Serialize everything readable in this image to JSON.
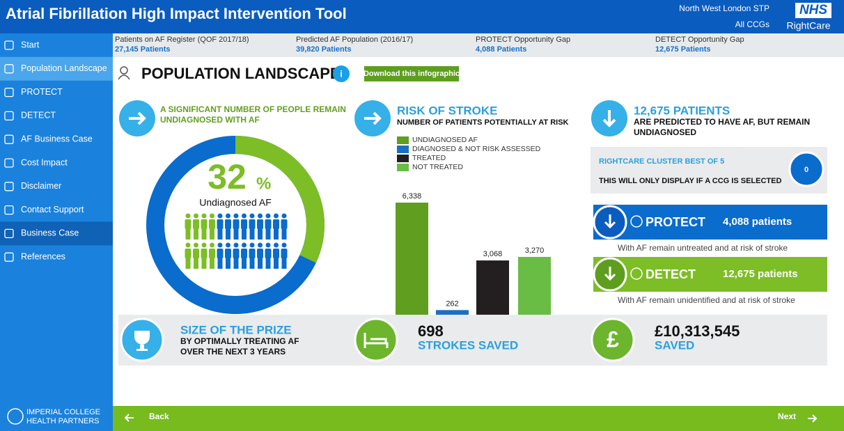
{
  "header": {
    "title": "Atrial Fibrillation High Impact Intervention Tool",
    "region": "North West London STP",
    "ccg": "All CCGs",
    "logo": "NHS",
    "brand": "RightCare"
  },
  "sidebar": {
    "items": [
      "Start",
      "Population Landscape",
      "PROTECT",
      "DETECT",
      "AF Business Case",
      "Cost Impact",
      "Disclaimer",
      "Contact Support",
      "Business Case",
      "References"
    ],
    "active": 1,
    "footer": [
      "IMPERIAL COLLEGE",
      "HEALTH PARTNERS"
    ]
  },
  "stats": [
    {
      "label": "Patients on AF Register (QOF 2017/18)",
      "value": "27,145 Patients"
    },
    {
      "label": "Predicted AF Population (2016/17)",
      "value": "39,820 Patients"
    },
    {
      "label": "PROTECT Opportunity Gap",
      "value": "4,088 Patients"
    },
    {
      "label": "DETECT Opportunity Gap",
      "value": "12,675 Patients"
    }
  ],
  "page": {
    "title": "POPULATION LANDSCAPE",
    "info": "i",
    "button": "Download this infographic"
  },
  "undiagnosed": {
    "heading": [
      "A SIGNIFICANT NUMBER OF PEOPLE REMAIN",
      "UNDIAGNOSED WITH AF"
    ],
    "percent": 32,
    "percent_unit": "%",
    "caption": "Undiagnosed AF"
  },
  "stroke": {
    "heading": "RISK OF STROKE",
    "subheading": "NUMBER OF PATIENTS POTENTIALLY AT RISK",
    "series": [
      {
        "name": "UNDIAGNOSED AF",
        "color": "#5f9e1f",
        "value": 6338,
        "value_label": "6,338"
      },
      {
        "name": "DIAGNOSED & NOT RISK ASSESSED",
        "color": "#1a6fc4",
        "value": 262,
        "value_label": "262"
      },
      {
        "name": "TREATED",
        "color": "#231f20",
        "value": 3068,
        "value_label": "3,068"
      },
      {
        "name": "NOT TREATED",
        "color": "#69bd45",
        "value": 3270,
        "value_label": "3,270"
      }
    ]
  },
  "predicted": {
    "heading": "12,675 PATIENTS",
    "text": [
      "ARE PREDICTED TO HAVE AF, BUT REMAIN",
      "UNDIAGNOSED"
    ]
  },
  "cluster": {
    "title": "RIGHTCARE CLUSTER BEST OF 5",
    "text": "THIS WILL ONLY DISPLAY IF A CCG IS SELECTED",
    "value": 0
  },
  "protect": {
    "label": "PROTECT",
    "value": "4,088 patients",
    "note": "With AF remain untreated and at risk of stroke"
  },
  "detect": {
    "label": "DETECT",
    "value": "12,675 patients",
    "note": "With AF remain unidentified and at risk of stroke"
  },
  "prize": {
    "heading": "SIZE OF THE PRIZE",
    "text": [
      "BY OPTIMALLY TREATING AF",
      "OVER THE NEXT 3 YEARS"
    ]
  },
  "strokes": {
    "value": 698,
    "label": "STROKES SAVED"
  },
  "savings": {
    "symbol": "£",
    "value": "£10,313,545",
    "label": "SAVED"
  },
  "footer": {
    "back": "Back",
    "next": "Next"
  }
}
